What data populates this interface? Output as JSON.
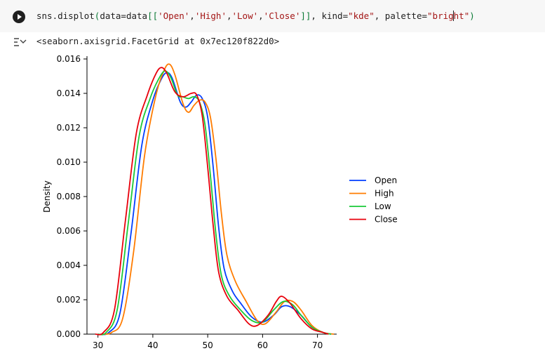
{
  "code_cell": {
    "segments": [
      {
        "text": "sns.displot",
        "cls": "tok-fn"
      },
      {
        "text": "(",
        "cls": "tok-paren"
      },
      {
        "text": "data=data",
        "cls": "tok-fn"
      },
      {
        "text": "[[",
        "cls": "tok-paren"
      },
      {
        "text": "'Open'",
        "cls": "tok-str"
      },
      {
        "text": ",",
        "cls": "tok-punct"
      },
      {
        "text": "'High'",
        "cls": "tok-str"
      },
      {
        "text": ",",
        "cls": "tok-punct"
      },
      {
        "text": "'Low'",
        "cls": "tok-str"
      },
      {
        "text": ",",
        "cls": "tok-punct"
      },
      {
        "text": "'Close'",
        "cls": "tok-str"
      },
      {
        "text": "]]",
        "cls": "tok-paren"
      },
      {
        "text": ", kind=",
        "cls": "tok-fn"
      },
      {
        "text": "\"kde\"",
        "cls": "tok-str"
      },
      {
        "text": ", palette=",
        "cls": "tok-fn"
      },
      {
        "text": "\"brig",
        "cls": "tok-str"
      },
      {
        "text": "ht\"",
        "cls": "tok-str"
      },
      {
        "text": ")",
        "cls": "tok-paren"
      }
    ]
  },
  "output": {
    "text": "<seaborn.axisgrid.FacetGrid at 0x7ec120f822d0>"
  },
  "icons": {
    "run": "play-icon",
    "output": "output-toggle-icon"
  },
  "chart_data": {
    "type": "line",
    "title": "",
    "xlabel": "",
    "ylabel": "Density",
    "xlim": [
      28,
      73.5
    ],
    "ylim": [
      0,
      0.016
    ],
    "xticks": [
      30,
      40,
      50,
      60,
      70
    ],
    "yticks": [
      0.0,
      0.002,
      0.004,
      0.006,
      0.008,
      0.01,
      0.012,
      0.014,
      0.016
    ],
    "ytick_labels": [
      "0.000",
      "0.002",
      "0.004",
      "0.006",
      "0.008",
      "0.010",
      "0.012",
      "0.014",
      "0.016"
    ],
    "grid": false,
    "legend_position": "right",
    "series": [
      {
        "name": "Open",
        "color": "#023eff",
        "points": [
          [
            30.5,
            0
          ],
          [
            32,
            0.0001
          ],
          [
            34,
            0.0012
          ],
          [
            36,
            0.0058
          ],
          [
            38,
            0.011
          ],
          [
            40,
            0.0136
          ],
          [
            41.5,
            0.0148
          ],
          [
            42.5,
            0.0152
          ],
          [
            43.5,
            0.0149
          ],
          [
            45,
            0.0135
          ],
          [
            46,
            0.0132
          ],
          [
            47,
            0.0135
          ],
          [
            48,
            0.0139
          ],
          [
            49,
            0.0137
          ],
          [
            50,
            0.0126
          ],
          [
            51,
            0.0097
          ],
          [
            52,
            0.0062
          ],
          [
            53,
            0.0038
          ],
          [
            54.5,
            0.0025
          ],
          [
            56,
            0.0018
          ],
          [
            58,
            0.001
          ],
          [
            60,
            0.0007
          ],
          [
            62,
            0.0011
          ],
          [
            63.5,
            0.0016
          ],
          [
            65,
            0.0016
          ],
          [
            67,
            0.0011
          ],
          [
            69,
            0.0004
          ],
          [
            71,
            0.0001
          ],
          [
            72.5,
            0
          ]
        ]
      },
      {
        "name": "High",
        "color": "#ff7c00",
        "points": [
          [
            31,
            0
          ],
          [
            32.5,
            0.0001
          ],
          [
            34.5,
            0.0009
          ],
          [
            36.5,
            0.0048
          ],
          [
            38.5,
            0.0104
          ],
          [
            40.5,
            0.0138
          ],
          [
            42,
            0.0153
          ],
          [
            43,
            0.0157
          ],
          [
            44,
            0.0151
          ],
          [
            45.5,
            0.0134
          ],
          [
            46.5,
            0.0129
          ],
          [
            47.5,
            0.0133
          ],
          [
            48.5,
            0.0136
          ],
          [
            49.5,
            0.0135
          ],
          [
            50.5,
            0.0126
          ],
          [
            51.5,
            0.0102
          ],
          [
            52.5,
            0.007
          ],
          [
            53.5,
            0.0046
          ],
          [
            55,
            0.0031
          ],
          [
            57,
            0.0019
          ],
          [
            59,
            0.0008
          ],
          [
            60.5,
            0.0006
          ],
          [
            62.5,
            0.0013
          ],
          [
            64,
            0.0019
          ],
          [
            65.5,
            0.0019
          ],
          [
            67,
            0.0014
          ],
          [
            69,
            0.0005
          ],
          [
            71,
            0.0001
          ],
          [
            73,
            0
          ]
        ]
      },
      {
        "name": "Low",
        "color": "#1ac938",
        "points": [
          [
            30,
            0
          ],
          [
            31.5,
            0.0001
          ],
          [
            33.5,
            0.0014
          ],
          [
            35.5,
            0.0064
          ],
          [
            37.5,
            0.0115
          ],
          [
            39.5,
            0.0137
          ],
          [
            41,
            0.0148
          ],
          [
            42.2,
            0.0153
          ],
          [
            43.3,
            0.0149
          ],
          [
            44.5,
            0.0139
          ],
          [
            45.5,
            0.0138
          ],
          [
            46.5,
            0.0137
          ],
          [
            47.5,
            0.0138
          ],
          [
            48.5,
            0.0135
          ],
          [
            49.5,
            0.0122
          ],
          [
            50.5,
            0.0092
          ],
          [
            51.5,
            0.0058
          ],
          [
            52.5,
            0.0034
          ],
          [
            54,
            0.0022
          ],
          [
            56,
            0.0014
          ],
          [
            58,
            0.0008
          ],
          [
            60,
            0.0007
          ],
          [
            62,
            0.0014
          ],
          [
            63.8,
            0.0019
          ],
          [
            65.5,
            0.0017
          ],
          [
            67,
            0.0011
          ],
          [
            69,
            0.0004
          ],
          [
            71,
            0.0001
          ],
          [
            72.5,
            0
          ]
        ]
      },
      {
        "name": "Close",
        "color": "#e8000b",
        "points": [
          [
            29.5,
            0
          ],
          [
            31,
            0.0001
          ],
          [
            33,
            0.0014
          ],
          [
            35,
            0.0066
          ],
          [
            37,
            0.0117
          ],
          [
            39,
            0.0139
          ],
          [
            40.5,
            0.0151
          ],
          [
            41.5,
            0.0155
          ],
          [
            42.5,
            0.0152
          ],
          [
            44,
            0.0141
          ],
          [
            45.5,
            0.0138
          ],
          [
            47,
            0.014
          ],
          [
            48,
            0.0139
          ],
          [
            49,
            0.0127
          ],
          [
            50,
            0.0097
          ],
          [
            51,
            0.0063
          ],
          [
            52,
            0.0036
          ],
          [
            53.5,
            0.0022
          ],
          [
            55.5,
            0.0014
          ],
          [
            57.5,
            0.0006
          ],
          [
            59,
            0.0005
          ],
          [
            61,
            0.0011
          ],
          [
            62.5,
            0.0019
          ],
          [
            63.5,
            0.0022
          ],
          [
            65,
            0.0018
          ],
          [
            67,
            0.0009
          ],
          [
            69,
            0.0003
          ],
          [
            71,
            0.0001
          ],
          [
            72,
            0
          ]
        ]
      }
    ]
  }
}
